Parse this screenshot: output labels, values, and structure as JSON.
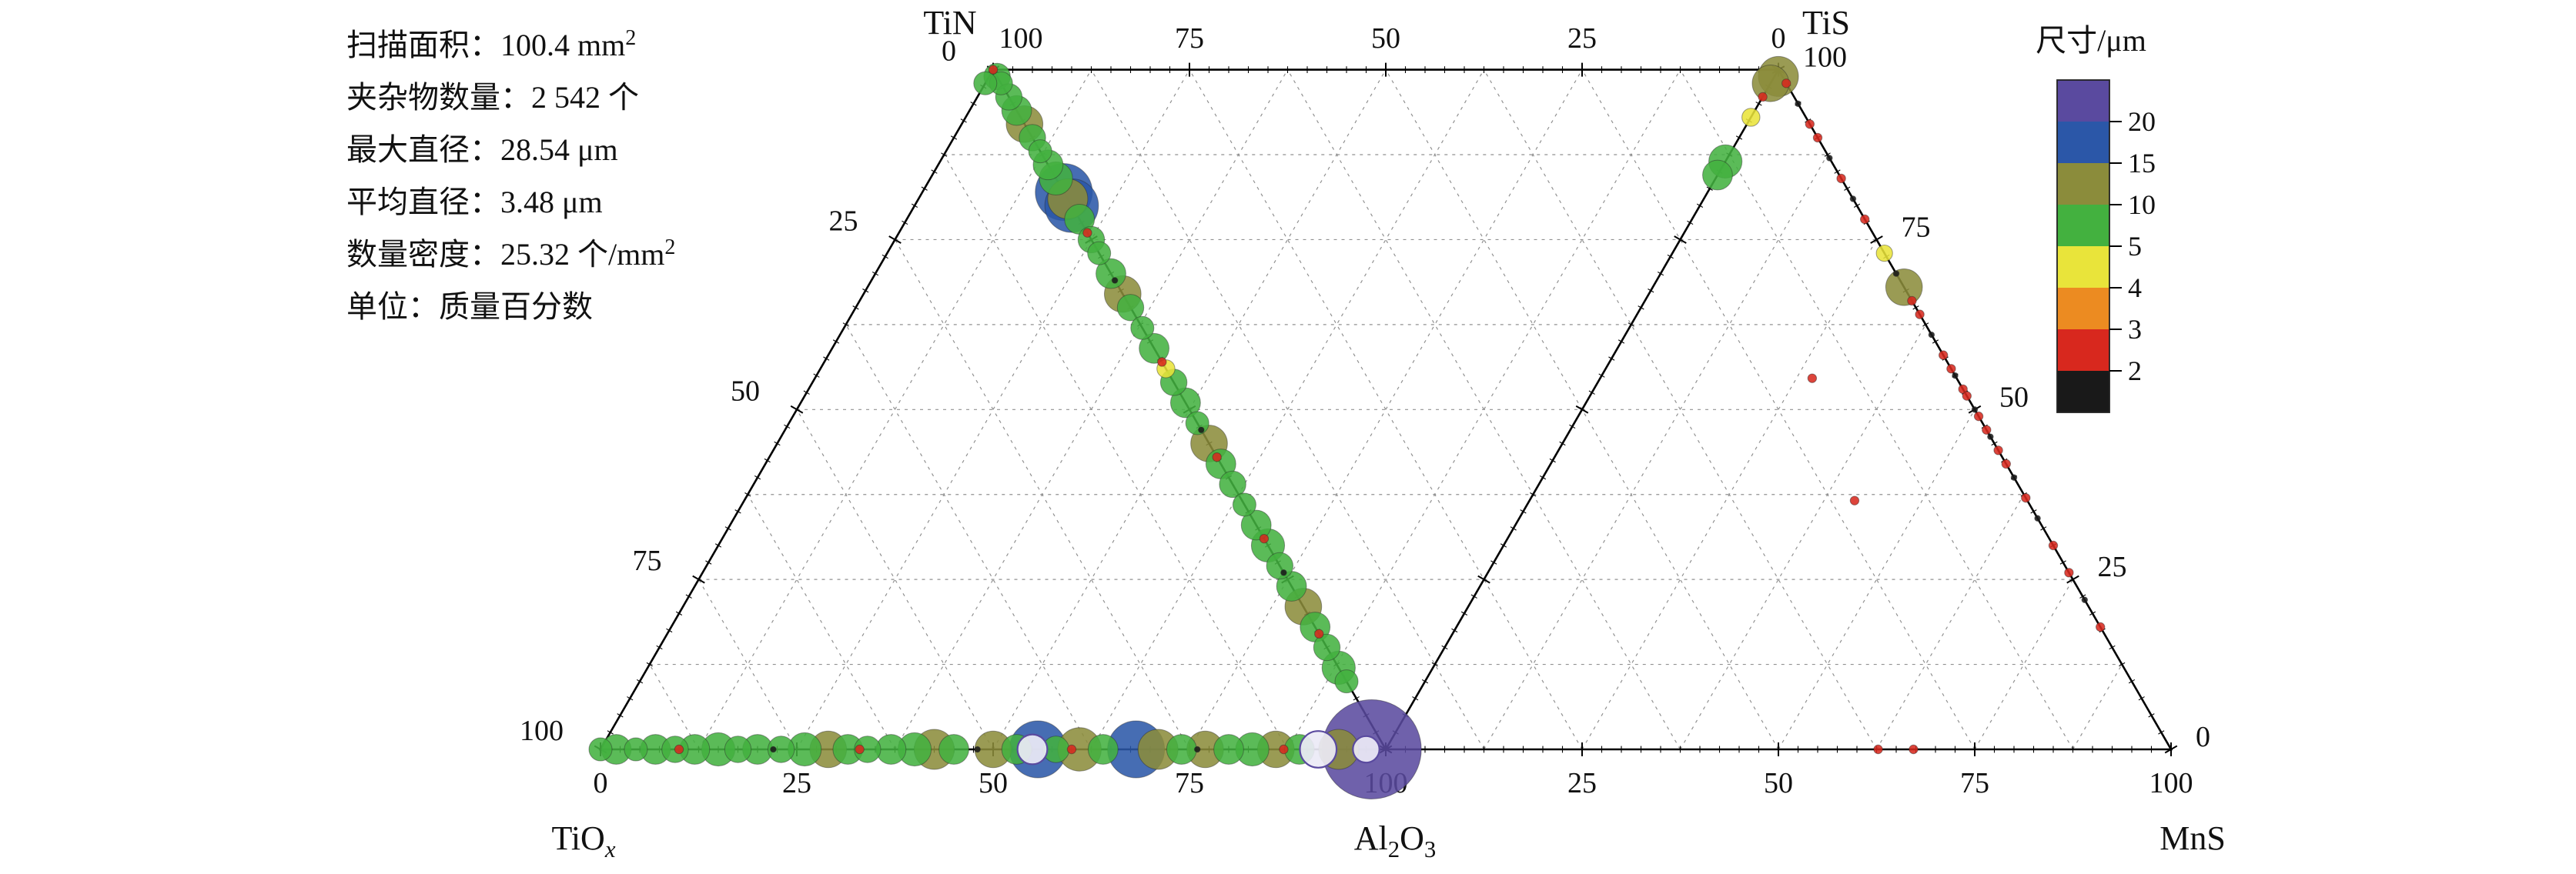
{
  "stats": {
    "lines": [
      [
        {
          "t": "扫描面积：100.4 mm"
        },
        {
          "t": "2",
          "sup": true
        }
      ],
      [
        {
          "t": "夹杂物数量：2 542 个"
        }
      ],
      [
        {
          "t": "最大直径：28.54 μm"
        }
      ],
      [
        {
          "t": "平均直径：3.48 μm"
        }
      ],
      [
        {
          "t": "数量密度：25.32 个/mm"
        },
        {
          "t": "2",
          "sup": true
        }
      ],
      [
        {
          "t": "单位：质量百分数"
        }
      ]
    ]
  },
  "legend": {
    "title": "尺寸/μm",
    "bins": [
      {
        "color": "#5a4a9f",
        "label": "20"
      },
      {
        "color": "#2b57a8",
        "label": "15"
      },
      {
        "color": "#8b8c3b",
        "label": "10"
      },
      {
        "color": "#43b13f",
        "label": "5"
      },
      {
        "color": "#e9e43a",
        "label": "4"
      },
      {
        "color": "#ec8b21",
        "label": "3"
      },
      {
        "color": "#d8281e",
        "label": "2"
      },
      {
        "color": "#191919",
        "label": null
      }
    ]
  },
  "chart_data": {
    "type": "scatter",
    "subtype": "double-ternary-bubble",
    "left_triangle": {
      "corners": [
        "TiOx",
        "Al2O3",
        "TiN"
      ]
    },
    "right_triangle": {
      "corners": [
        "Al2O3",
        "MnS",
        "TiS"
      ]
    },
    "axes": {
      "top": [
        "100",
        "75",
        "50",
        "25",
        "0"
      ],
      "left": [
        "0",
        "25",
        "50",
        "75",
        "100"
      ],
      "bottom_left": [
        "0",
        "25",
        "50",
        "75",
        "100"
      ],
      "bottom_right": [
        "25",
        "50",
        "75",
        "100"
      ],
      "right": [
        "100",
        "75",
        "50",
        "25",
        "0"
      ]
    },
    "corner_labels": {
      "tin": {
        "parts": [
          {
            "t": "TiN"
          }
        ]
      },
      "tis": {
        "parts": [
          {
            "t": "TiS"
          }
        ]
      },
      "tiox": {
        "parts": [
          {
            "t": "TiO"
          },
          {
            "t": "x",
            "sub": true,
            "italic": true
          }
        ]
      },
      "al2o3": {
        "parts": [
          {
            "t": "Al"
          },
          {
            "t": "2",
            "sub": true
          },
          {
            "t": "O"
          },
          {
            "t": "3",
            "sub": true
          }
        ]
      },
      "mns": {
        "parts": [
          {
            "t": "MnS"
          }
        ]
      }
    },
    "points_columns": [
      "triangle",
      "c1_pct",
      "c2_pct",
      "c3_pct",
      "diameter_um",
      "halo"
    ],
    "points": [
      [
        "L",
        0,
        0,
        100,
        3
      ],
      [
        "L",
        0,
        1,
        99,
        7
      ],
      [
        "L",
        0,
        2,
        98,
        6
      ],
      [
        "L",
        0,
        4,
        96,
        7
      ],
      [
        "L",
        0,
        6,
        94,
        8
      ],
      [
        "L",
        0,
        8,
        92,
        10
      ],
      [
        "L",
        0,
        10,
        90,
        7
      ],
      [
        "L",
        0,
        12,
        88,
        6
      ],
      [
        "L",
        0,
        14,
        86,
        8
      ],
      [
        "L",
        0,
        16,
        84,
        9
      ],
      [
        "L",
        0,
        18,
        82,
        16
      ],
      [
        "L",
        0,
        20,
        80,
        15
      ],
      [
        "L",
        0,
        19,
        81,
        11
      ],
      [
        "L",
        0,
        22,
        78,
        8
      ],
      [
        "L",
        0,
        24,
        76,
        3
      ],
      [
        "L",
        0,
        25,
        75,
        7
      ],
      [
        "L",
        0,
        27,
        73,
        6
      ],
      [
        "L",
        0,
        30,
        70,
        8
      ],
      [
        "L",
        0,
        31,
        69,
        2
      ],
      [
        "L",
        0,
        33,
        67,
        10
      ],
      [
        "L",
        0,
        35,
        65,
        7
      ],
      [
        "L",
        0,
        38,
        62,
        6
      ],
      [
        "L",
        0,
        41,
        59,
        8
      ],
      [
        "L",
        0,
        43,
        57,
        3
      ],
      [
        "L",
        0,
        44,
        56,
        4.5
      ],
      [
        "L",
        0,
        46,
        54,
        7
      ],
      [
        "L",
        0,
        49,
        51,
        8
      ],
      [
        "L",
        0,
        52,
        48,
        6
      ],
      [
        "L",
        0,
        53,
        47,
        2
      ],
      [
        "L",
        0,
        55,
        45,
        10
      ],
      [
        "L",
        0,
        57,
        43,
        3
      ],
      [
        "L",
        0,
        58,
        42,
        8
      ],
      [
        "L",
        0,
        61,
        39,
        7
      ],
      [
        "L",
        0,
        64,
        36,
        6
      ],
      [
        "L",
        0,
        67,
        33,
        8
      ],
      [
        "L",
        0,
        69,
        31,
        3
      ],
      [
        "L",
        0,
        70,
        30,
        9
      ],
      [
        "L",
        0,
        73,
        27,
        7
      ],
      [
        "L",
        0,
        74,
        26,
        2
      ],
      [
        "L",
        0,
        76,
        24,
        8
      ],
      [
        "L",
        0,
        79,
        21,
        10
      ],
      [
        "L",
        0,
        82,
        18,
        8
      ],
      [
        "L",
        0,
        83,
        17,
        3
      ],
      [
        "L",
        0,
        85,
        15,
        7
      ],
      [
        "L",
        0,
        88,
        12,
        9
      ],
      [
        "L",
        0,
        90,
        10,
        6
      ],
      [
        "L",
        2,
        0,
        98,
        6
      ],
      [
        "L",
        100,
        0,
        0,
        6
      ],
      [
        "L",
        98,
        2,
        0,
        8
      ],
      [
        "L",
        95.5,
        4.5,
        0,
        6
      ],
      [
        "L",
        93,
        7,
        0,
        8
      ],
      [
        "L",
        90.5,
        9.5,
        0,
        7
      ],
      [
        "L",
        90,
        10,
        0,
        3
      ],
      [
        "L",
        88,
        12,
        0,
        8
      ],
      [
        "L",
        85,
        15,
        0,
        9
      ],
      [
        "L",
        82.5,
        17.5,
        0,
        7
      ],
      [
        "L",
        80,
        20,
        0,
        8
      ],
      [
        "L",
        78,
        22,
        0,
        2
      ],
      [
        "L",
        77,
        23,
        0,
        7
      ],
      [
        "L",
        74,
        26,
        0,
        9
      ],
      [
        "L",
        71,
        29,
        0,
        10
      ],
      [
        "L",
        68.5,
        31.5,
        0,
        8
      ],
      [
        "L",
        67,
        33,
        0,
        3
      ],
      [
        "L",
        66,
        34,
        0,
        7
      ],
      [
        "L",
        63,
        37,
        0,
        8
      ],
      [
        "L",
        60,
        40,
        0,
        9
      ],
      [
        "L",
        57.5,
        42.5,
        0,
        11
      ],
      [
        "L",
        55,
        45,
        0,
        8
      ],
      [
        "L",
        52,
        48,
        0,
        2
      ],
      [
        "L",
        50,
        50,
        0,
        10
      ],
      [
        "L",
        47,
        53,
        0,
        8
      ],
      [
        "L",
        44.3,
        55.7,
        0,
        16
      ],
      [
        "L",
        45,
        55,
        0,
        8,
        1
      ],
      [
        "L",
        42,
        58,
        0,
        7
      ],
      [
        "L",
        40,
        60,
        0,
        3
      ],
      [
        "L",
        39,
        61,
        0,
        12
      ],
      [
        "L",
        36,
        64,
        0,
        8
      ],
      [
        "L",
        31.8,
        68.2,
        0,
        16
      ],
      [
        "L",
        29,
        71,
        0,
        11
      ],
      [
        "L",
        26,
        74,
        0,
        8
      ],
      [
        "L",
        24,
        76,
        0,
        2
      ],
      [
        "L",
        23,
        77,
        0,
        10
      ],
      [
        "L",
        20,
        80,
        0,
        8
      ],
      [
        "L",
        17,
        83,
        0,
        9
      ],
      [
        "L",
        14,
        86,
        0,
        10
      ],
      [
        "L",
        13,
        87,
        0,
        3
      ],
      [
        "L",
        11,
        89,
        0,
        8
      ],
      [
        "L",
        8.6,
        91.4,
        0,
        10,
        1
      ],
      [
        "L",
        6,
        94,
        0,
        11
      ],
      [
        "L",
        1.8,
        98.2,
        0,
        28.5
      ],
      [
        "L",
        2.5,
        97.5,
        0,
        7,
        1
      ],
      [
        "R",
        0.5,
        0.5,
        99,
        11
      ],
      [
        "R",
        2,
        0,
        98,
        10
      ],
      [
        "R",
        4,
        0,
        96,
        3
      ],
      [
        "R",
        7,
        0,
        93,
        4.5
      ],
      [
        "R",
        13.5,
        0,
        86.5,
        9
      ],
      [
        "R",
        15.5,
        0,
        84.5,
        8
      ],
      [
        "R",
        0,
        2,
        98,
        3
      ],
      [
        "R",
        0,
        5,
        95,
        2
      ],
      [
        "R",
        0,
        8,
        92,
        3
      ],
      [
        "R",
        0,
        10,
        90,
        3
      ],
      [
        "R",
        0,
        13,
        87,
        2
      ],
      [
        "R",
        0,
        16,
        84,
        3
      ],
      [
        "R",
        0,
        19,
        81,
        2
      ],
      [
        "R",
        0,
        22,
        78,
        3
      ],
      [
        "R",
        0,
        27,
        73,
        4
      ],
      [
        "R",
        0,
        30,
        70,
        2
      ],
      [
        "R",
        0,
        32,
        68,
        10
      ],
      [
        "R",
        0,
        34,
        66,
        3
      ],
      [
        "R",
        0,
        36,
        64,
        3
      ],
      [
        "R",
        0,
        39,
        61,
        2
      ],
      [
        "R",
        0,
        42,
        58,
        3
      ],
      [
        "R",
        0,
        44,
        56,
        3
      ],
      [
        "R",
        0,
        45,
        55,
        2
      ],
      [
        "R",
        0,
        47,
        53,
        3
      ],
      [
        "R",
        0,
        48,
        52,
        3
      ],
      [
        "R",
        0,
        50,
        50,
        2
      ],
      [
        "R",
        0,
        51,
        49,
        3
      ],
      [
        "R",
        0,
        53,
        47,
        3
      ],
      [
        "R",
        0,
        54,
        46,
        2
      ],
      [
        "R",
        0,
        56,
        44,
        3
      ],
      [
        "R",
        0,
        58,
        42,
        3
      ],
      [
        "R",
        0,
        60,
        40,
        2
      ],
      [
        "R",
        0,
        63,
        37,
        3
      ],
      [
        "R",
        0,
        66,
        34,
        2
      ],
      [
        "R",
        0,
        70,
        30,
        3
      ],
      [
        "R",
        0,
        74,
        26,
        3
      ],
      [
        "R",
        0,
        78,
        22,
        2
      ],
      [
        "R",
        0,
        82,
        18,
        3
      ],
      [
        "R",
        37.3,
        62.7,
        0,
        3
      ],
      [
        "R",
        32.8,
        67.2,
        0,
        3
      ],
      [
        "R",
        18.4,
        27,
        54.6,
        3
      ],
      [
        "R",
        22,
        41.4,
        36.6,
        3
      ]
    ]
  }
}
